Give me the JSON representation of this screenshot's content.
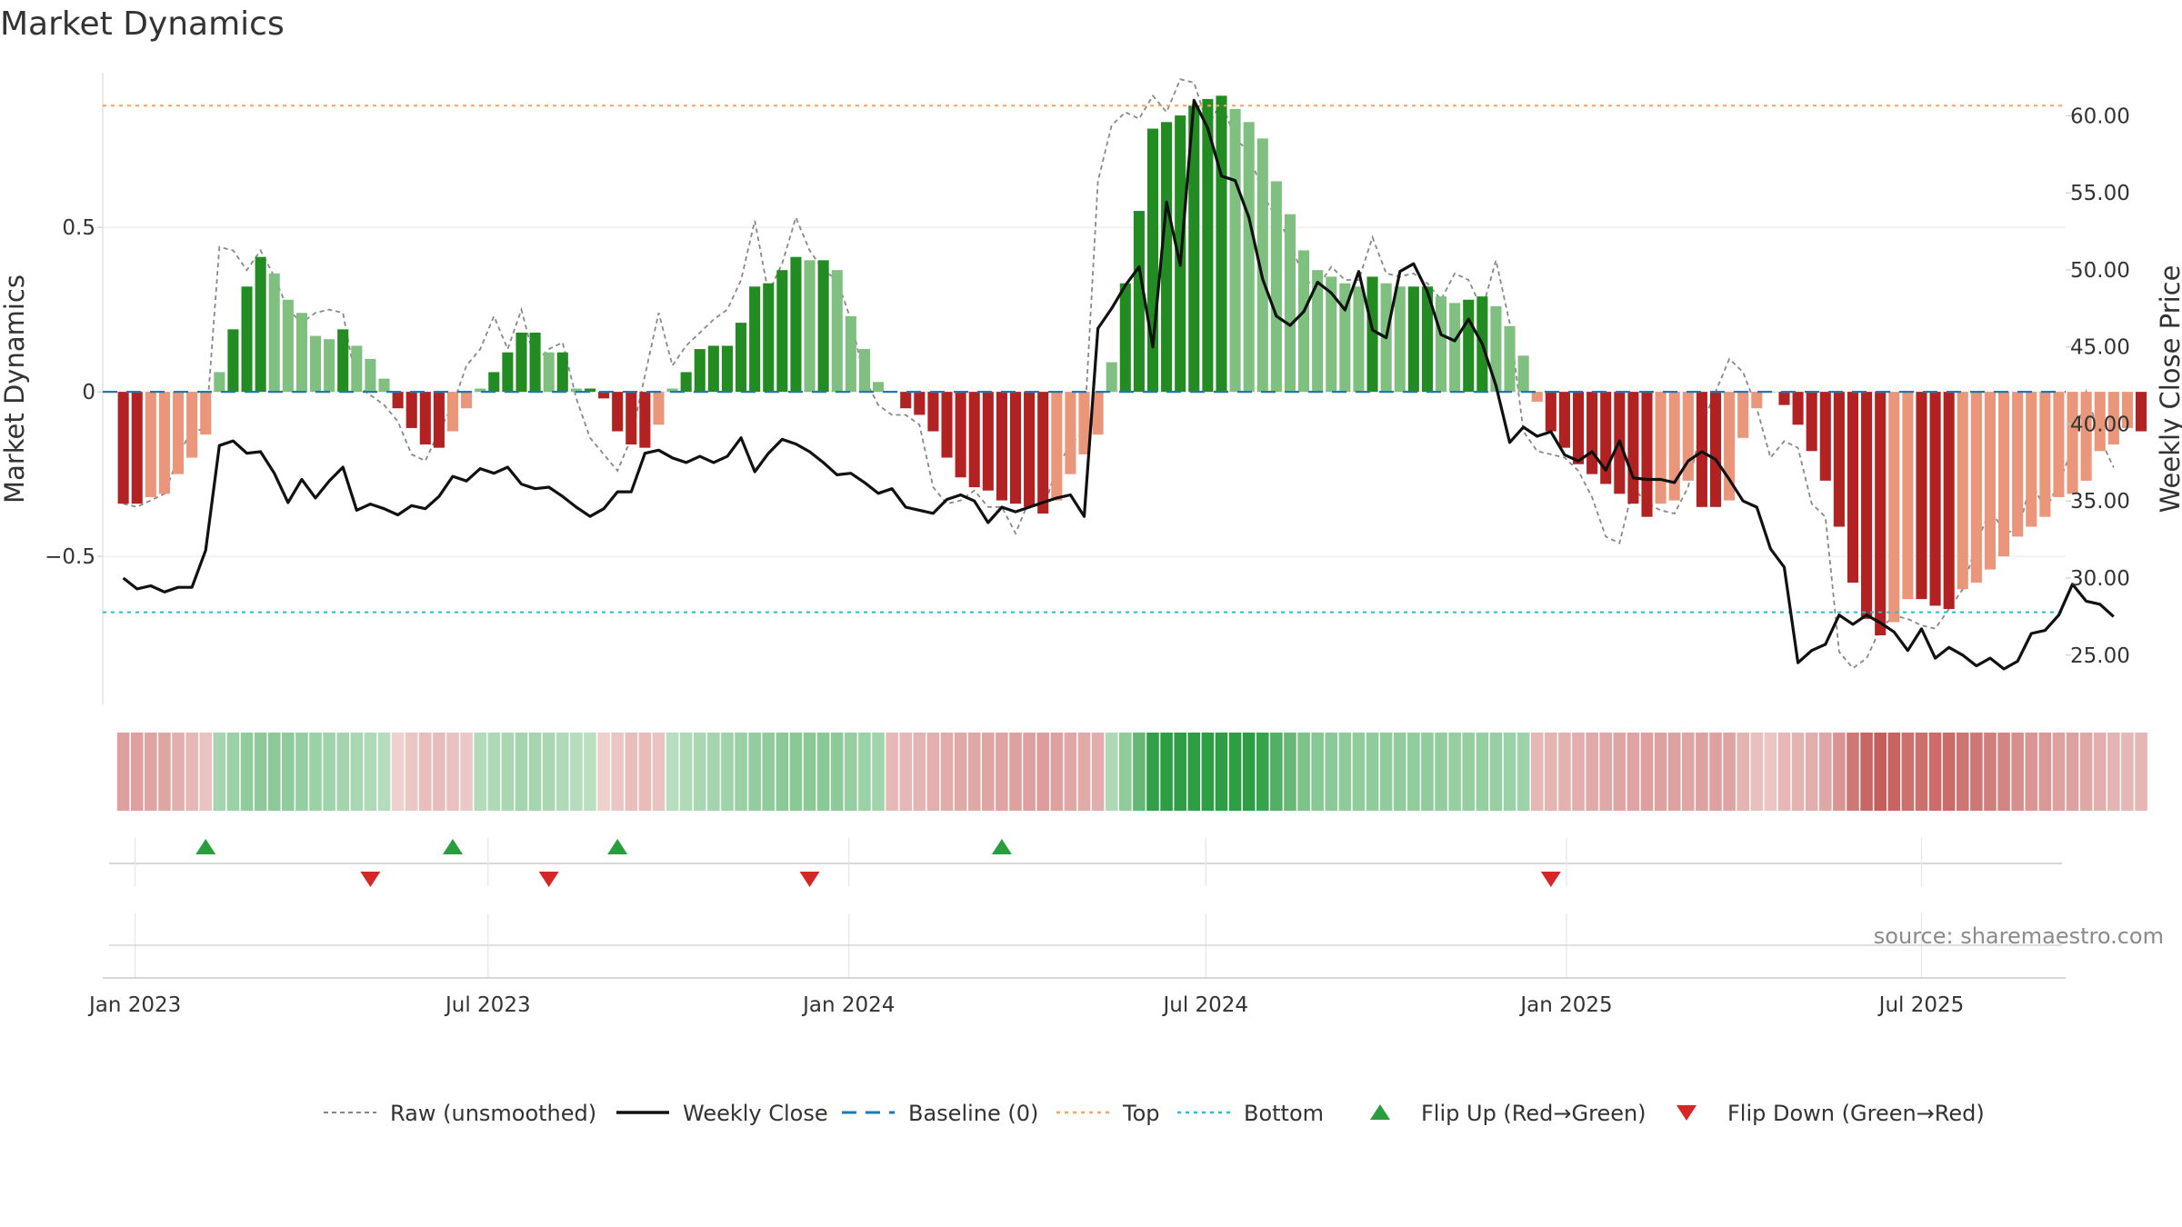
{
  "chart_data": {
    "type": "bar",
    "title": "Market Dynamics",
    "ylabel": "Market Dynamics",
    "y2label": "Weekly Close Price",
    "source": "source: sharemaestro.com",
    "ylim": [
      -0.95,
      0.97
    ],
    "y2lim": [
      21.8,
      62.8
    ],
    "yticks": [
      {
        "value": 0.5,
        "label": "0.5"
      },
      {
        "value": 0,
        "label": "0"
      },
      {
        "value": -0.5,
        "label": "−0.5"
      }
    ],
    "y2ticks": [
      {
        "value": 60,
        "label": "60.00"
      },
      {
        "value": 55,
        "label": "55.00"
      },
      {
        "value": 50,
        "label": "50.00"
      },
      {
        "value": 45,
        "label": "45.00"
      },
      {
        "value": 40,
        "label": "40.00"
      },
      {
        "value": 35,
        "label": "35.00"
      },
      {
        "value": 30,
        "label": "30.00"
      },
      {
        "value": 25,
        "label": "25.00"
      }
    ],
    "x_start": "2022-12-26",
    "xlim_weeks": [
      -1.5,
      141.5
    ],
    "xticks": [
      {
        "week": 0.86,
        "label": "Jan 2023"
      },
      {
        "week": 26.57,
        "label": "Jul 2023"
      },
      {
        "week": 52.86,
        "label": "Jan 2024"
      },
      {
        "week": 78.86,
        "label": "Jul 2024"
      },
      {
        "week": 105.14,
        "label": "Jan 2025"
      },
      {
        "week": 131.0,
        "label": "Jul 2025"
      }
    ],
    "top_level": 0.87,
    "bottom_level": -0.67,
    "baseline": 0,
    "bars": [
      -0.34,
      -0.34,
      -0.32,
      -0.31,
      -0.25,
      -0.2,
      -0.13,
      0.06,
      0.19,
      0.32,
      0.41,
      0.36,
      0.28,
      0.24,
      0.17,
      0.16,
      0.19,
      0.14,
      0.1,
      0.04,
      -0.05,
      -0.11,
      -0.16,
      -0.17,
      -0.12,
      -0.05,
      0.01,
      0.06,
      0.12,
      0.18,
      0.18,
      0.12,
      0.12,
      0.01,
      0.01,
      -0.02,
      -0.12,
      -0.16,
      -0.17,
      -0.1,
      0.01,
      0.06,
      0.13,
      0.14,
      0.14,
      0.21,
      0.32,
      0.33,
      0.37,
      0.41,
      0.4,
      0.4,
      0.37,
      0.23,
      0.13,
      0.03,
      0.0,
      -0.05,
      -0.07,
      -0.12,
      -0.2,
      -0.26,
      -0.29,
      -0.3,
      -0.33,
      -0.34,
      -0.35,
      -0.37,
      -0.33,
      -0.25,
      -0.19,
      -0.13,
      0.09,
      0.33,
      0.55,
      0.8,
      0.82,
      0.84,
      0.87,
      0.89,
      0.9,
      0.86,
      0.82,
      0.77,
      0.64,
      0.54,
      0.43,
      0.37,
      0.35,
      0.33,
      0.32,
      0.35,
      0.33,
      0.32,
      0.32,
      0.32,
      0.29,
      0.27,
      0.28,
      0.29,
      0.26,
      0.2,
      0.11,
      -0.03,
      -0.12,
      -0.17,
      -0.22,
      -0.25,
      -0.28,
      -0.31,
      -0.34,
      -0.38,
      -0.34,
      -0.33,
      -0.27,
      -0.35,
      -0.35,
      -0.33,
      -0.14,
      -0.05,
      0.0,
      -0.04,
      -0.1,
      -0.18,
      -0.27,
      -0.41,
      -0.58,
      -0.69,
      -0.74,
      -0.7,
      -0.63,
      -0.63,
      -0.65,
      -0.66,
      -0.6,
      -0.58,
      -0.54,
      -0.5,
      -0.44,
      -0.41,
      -0.38,
      -0.32,
      -0.31,
      -0.27,
      -0.18,
      -0.16,
      -0.11,
      -0.12
    ],
    "raw": [
      -0.34,
      -0.35,
      -0.33,
      -0.31,
      -0.2,
      -0.11,
      -0.12,
      0.44,
      0.43,
      0.37,
      0.43,
      0.35,
      0.25,
      0.21,
      0.24,
      0.25,
      0.24,
      0.02,
      -0.01,
      -0.04,
      -0.09,
      -0.19,
      -0.21,
      -0.12,
      -0.04,
      0.08,
      0.13,
      0.23,
      0.13,
      0.25,
      0.09,
      0.13,
      0.15,
      -0.02,
      -0.14,
      -0.19,
      -0.24,
      -0.14,
      0.05,
      0.24,
      0.08,
      0.14,
      0.18,
      0.22,
      0.25,
      0.34,
      0.52,
      0.3,
      0.39,
      0.53,
      0.43,
      0.37,
      0.34,
      0.22,
      0.04,
      -0.04,
      -0.07,
      -0.07,
      -0.1,
      -0.29,
      -0.34,
      -0.33,
      -0.3,
      -0.35,
      -0.35,
      -0.43,
      -0.33,
      -0.36,
      -0.23,
      -0.16,
      -0.12,
      0.64,
      0.81,
      0.85,
      0.83,
      0.9,
      0.85,
      0.95,
      0.94,
      0.81,
      0.88,
      0.77,
      0.73,
      0.6,
      0.53,
      0.46,
      0.34,
      0.32,
      0.38,
      0.34,
      0.34,
      0.47,
      0.36,
      0.35,
      0.36,
      0.33,
      0.28,
      0.36,
      0.34,
      0.25,
      0.4,
      0.21,
      -0.12,
      -0.18,
      -0.19,
      -0.2,
      -0.24,
      -0.32,
      -0.44,
      -0.46,
      -0.29,
      -0.34,
      -0.36,
      -0.37,
      -0.29,
      -0.1,
      0.0,
      0.1,
      0.06,
      -0.05,
      -0.2,
      -0.15,
      -0.17,
      -0.34,
      -0.38,
      -0.79,
      -0.84,
      -0.81,
      -0.72,
      -0.68,
      -0.69,
      -0.71,
      -0.72,
      -0.66,
      -0.6,
      -0.46,
      -0.36,
      -0.42,
      -0.43,
      -0.27,
      -0.36,
      -0.28,
      -0.17,
      0.0,
      -0.14,
      -0.23
    ],
    "close": [
      30.0,
      29.3,
      29.5,
      29.1,
      29.4,
      29.4,
      31.8,
      38.6,
      38.9,
      38.1,
      38.2,
      36.8,
      34.9,
      36.4,
      35.2,
      36.3,
      37.2,
      34.4,
      34.8,
      34.5,
      34.1,
      34.7,
      34.5,
      35.3,
      36.6,
      36.3,
      37.1,
      36.8,
      37.2,
      36.1,
      35.8,
      35.9,
      35.3,
      34.6,
      34.0,
      34.5,
      35.6,
      35.6,
      38.1,
      38.3,
      37.8,
      37.5,
      37.9,
      37.5,
      37.9,
      39.1,
      36.9,
      38.1,
      39.0,
      38.7,
      38.2,
      37.5,
      36.7,
      36.8,
      36.2,
      35.5,
      35.8,
      34.6,
      34.4,
      34.2,
      35.1,
      35.4,
      35.0,
      33.6,
      34.6,
      34.3,
      34.6,
      34.9,
      35.2,
      35.4,
      34.0,
      46.2,
      47.5,
      49.0,
      50.2,
      45.0,
      54.4,
      50.3,
      61.0,
      59.2,
      56.1,
      55.8,
      53.4,
      49.4,
      47.0,
      46.4,
      47.3,
      49.2,
      48.5,
      47.4,
      49.9,
      46.1,
      45.6,
      49.9,
      50.4,
      48.6,
      45.8,
      45.4,
      46.8,
      45.2,
      42.5,
      38.8,
      39.8,
      39.2,
      39.5,
      38.0,
      37.6,
      38.2,
      37.0,
      38.9,
      36.5,
      36.4,
      36.4,
      36.2,
      37.6,
      38.2,
      37.7,
      36.4,
      35.0,
      34.6,
      31.9,
      30.7,
      24.5,
      25.3,
      25.7,
      27.6,
      27.0,
      27.6,
      27.1,
      26.5,
      25.3,
      26.7,
      24.8,
      25.5,
      25.0,
      24.3,
      24.8,
      24.1,
      24.6,
      26.4,
      26.6,
      27.6,
      29.6,
      28.5,
      28.3,
      27.5
    ],
    "heat": [
      -0.34,
      -0.34,
      -0.32,
      -0.31,
      -0.25,
      -0.2,
      -0.13,
      0.22,
      0.27,
      0.32,
      0.34,
      0.35,
      0.33,
      0.3,
      0.27,
      0.25,
      0.23,
      0.2,
      0.17,
      0.14,
      -0.05,
      -0.11,
      -0.16,
      -0.17,
      -0.14,
      -0.1,
      0.16,
      0.18,
      0.2,
      0.22,
      0.22,
      0.2,
      0.17,
      0.14,
      0.12,
      -0.06,
      -0.12,
      -0.16,
      -0.17,
      -0.13,
      0.13,
      0.17,
      0.2,
      0.23,
      0.25,
      0.28,
      0.31,
      0.33,
      0.35,
      0.36,
      0.36,
      0.36,
      0.34,
      0.3,
      0.27,
      0.24,
      -0.19,
      -0.2,
      -0.22,
      -0.25,
      -0.27,
      -0.29,
      -0.3,
      -0.31,
      -0.32,
      -0.33,
      -0.34,
      -0.35,
      -0.33,
      -0.3,
      -0.28,
      -0.26,
      0.18,
      0.33,
      0.55,
      0.8,
      0.82,
      0.84,
      0.87,
      0.89,
      0.9,
      0.86,
      0.82,
      0.77,
      0.64,
      0.54,
      0.43,
      0.37,
      0.35,
      0.33,
      0.32,
      0.33,
      0.33,
      0.32,
      0.32,
      0.32,
      0.31,
      0.3,
      0.3,
      0.3,
      0.29,
      0.27,
      0.26,
      -0.2,
      -0.22,
      -0.24,
      -0.26,
      -0.28,
      -0.29,
      -0.31,
      -0.32,
      -0.34,
      -0.33,
      -0.33,
      -0.31,
      -0.33,
      -0.33,
      -0.32,
      -0.22,
      -0.15,
      -0.12,
      -0.2,
      -0.22,
      -0.26,
      -0.3,
      -0.41,
      -0.58,
      -0.69,
      -0.74,
      -0.7,
      -0.63,
      -0.63,
      -0.65,
      -0.66,
      -0.6,
      -0.58,
      -0.54,
      -0.5,
      -0.44,
      -0.41,
      -0.38,
      -0.34,
      -0.33,
      -0.3,
      -0.25,
      -0.22,
      -0.2,
      -0.21
    ],
    "flip_up_weeks": [
      6,
      24,
      36,
      64
    ],
    "flip_down_weeks": [
      18,
      31,
      50,
      104
    ],
    "legend": [
      {
        "key": "raw",
        "label": "Raw (unsmoothed)"
      },
      {
        "key": "close",
        "label": "Weekly Close"
      },
      {
        "key": "baseline",
        "label": "Baseline (0)"
      },
      {
        "key": "top",
        "label": "Top"
      },
      {
        "key": "bottom",
        "label": "Bottom"
      },
      {
        "key": "flip_up",
        "label": "Flip Up (Red→Green)"
      },
      {
        "key": "flip_down",
        "label": "Flip Down (Green→Red)"
      }
    ],
    "colors": {
      "strong_green": "#228b22",
      "light_green": "#7fbf7f",
      "strong_red": "#b22222",
      "light_red": "#e9967a",
      "close_line": "#111111",
      "raw_line": "#888888",
      "baseline": "#1f77b4",
      "top": "#f4a460",
      "bottom": "#20c0d0",
      "flip_up": "#2a9d3f",
      "flip_down": "#d62728"
    }
  }
}
